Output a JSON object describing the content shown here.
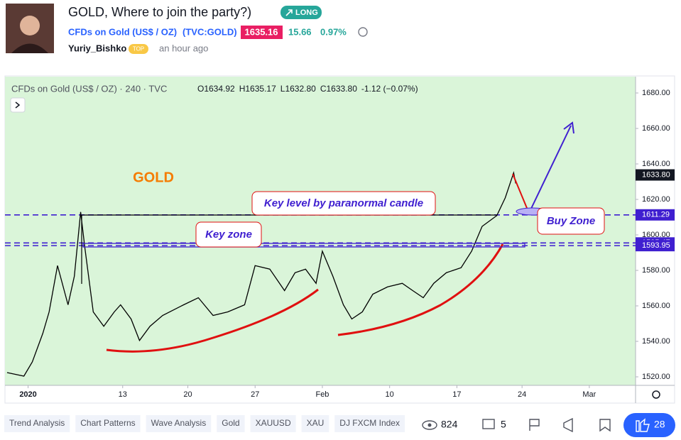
{
  "header": {
    "title": "GOLD, Where to join the party?)",
    "direction": "LONG",
    "symbol_name": "CFDs on Gold (US$ / OZ)",
    "symbol_code": "(TVC:GOLD)",
    "price": "1635.16",
    "change": "15.66",
    "change_pct": "0.97%",
    "author": "Yuriy_Bishko",
    "author_badge": "TOP",
    "time": "an hour ago"
  },
  "chart_data": {
    "type": "line",
    "legend": "CFDs on Gold (US$ / OZ) · 240 · TVC",
    "ohlc": [
      "O1634.92",
      "H1635.17",
      "L1632.80",
      "C1633.80",
      "-1.12 (−0.07%)"
    ],
    "x": [
      1,
      9,
      13,
      18,
      21,
      25,
      30,
      33,
      36,
      38,
      42,
      47,
      52,
      55,
      60,
      64,
      69,
      75,
      85,
      92,
      99,
      106,
      114,
      119,
      126,
      133,
      138,
      143,
      148,
      151,
      156,
      161,
      165,
      170,
      175,
      182,
      189,
      194,
      199,
      204,
      210,
      217,
      222,
      227,
      234,
      238,
      242,
      243
    ],
    "values": [
      1522.4,
      1520.4,
      1528.4,
      1544.5,
      1556.6,
      1582.7,
      1560.6,
      1576.7,
      1612.9,
      1592.8,
      1556.6,
      1548.5,
      1556.6,
      1560.6,
      1552.6,
      1540.5,
      1548.5,
      1554.6,
      1560.6,
      1564.6,
      1554.6,
      1556.6,
      1560.6,
      1582.7,
      1580.7,
      1568.6,
      1578.7,
      1580.7,
      1572.7,
      1590.8,
      1576.7,
      1560.6,
      1552.6,
      1556.6,
      1566.6,
      1570.7,
      1572.7,
      1568.6,
      1564.6,
      1572.7,
      1578.7,
      1581.5,
      1590.8,
      1604.8,
      1610.9,
      1620.9,
      1635.0,
      1629.0
    ],
    "color": "#000000",
    "xlim": [
      0,
      300
    ],
    "xticks": [
      {
        "value": 11,
        "label": "2020"
      },
      {
        "value": 56,
        "label": "13"
      },
      {
        "value": 87,
        "label": "20"
      },
      {
        "value": 119,
        "label": "27"
      },
      {
        "value": 151,
        "label": "Feb"
      },
      {
        "value": 183,
        "label": "10"
      },
      {
        "value": 215,
        "label": "17"
      },
      {
        "value": 246,
        "label": "24"
      },
      {
        "value": 278,
        "label": "Mar"
      }
    ],
    "ylim": [
      1515.2,
      1689.2
    ],
    "yticks": [
      {
        "value": 1520,
        "label": "1520.00"
      },
      {
        "value": 1540,
        "label": "1540.00"
      },
      {
        "value": 1560,
        "label": "1560.00"
      },
      {
        "value": 1580,
        "label": "1580.00"
      },
      {
        "value": 1600,
        "label": "1600.00"
      },
      {
        "value": 1620,
        "label": "1620.00"
      },
      {
        "value": 1640,
        "label": "1640.00"
      },
      {
        "value": 1660,
        "label": "1660.00"
      },
      {
        "value": 1680,
        "label": "1680.00"
      }
    ],
    "price_lines": [
      1611.29,
      1595.47,
      1593.95
    ],
    "last_price": {
      "value": 1633.8,
      "label": "1633.80"
    },
    "annotations": {
      "title": "GOLD",
      "key_level": "Key level by paranormal candle",
      "key_zone": "Key zone",
      "buy_zone": "Buy Zone"
    }
  },
  "footer": {
    "tags": [
      "Trend Analysis",
      "Chart Patterns",
      "Wave Analysis",
      "Gold",
      "XAUUSD",
      "XAU",
      "DJ FXCM Index"
    ],
    "views": "824",
    "comments": "5",
    "likes": "28"
  }
}
